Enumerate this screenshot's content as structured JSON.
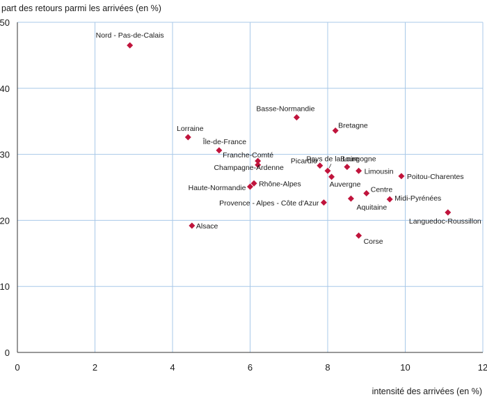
{
  "chart_data": {
    "type": "scatter",
    "title": "",
    "xlabel": "intensité des arrivées (en %)",
    "ylabel": "part des retours parmi les arrivées (en %)",
    "xlim": [
      0,
      12
    ],
    "ylim": [
      0,
      50
    ],
    "xticks": [
      "0",
      "2",
      "4",
      "6",
      "8",
      "10",
      "12"
    ],
    "yticks": [
      "0",
      "10",
      "20",
      "30",
      "40",
      "50"
    ],
    "grid": true,
    "marker_color": "#c0143c",
    "grid_color": "#a8c8e8",
    "points": [
      {
        "label": "Nord - Pas-de-Calais",
        "x": 2.9,
        "y": 46.5
      },
      {
        "label": "Lorraine",
        "x": 4.4,
        "y": 32.6
      },
      {
        "label": "Île-de-France",
        "x": 5.2,
        "y": 30.6
      },
      {
        "label": "Basse-Normandie",
        "x": 7.2,
        "y": 35.6
      },
      {
        "label": "Bretagne",
        "x": 8.2,
        "y": 33.6
      },
      {
        "label": "Franche-Comté",
        "x": 6.2,
        "y": 29.0
      },
      {
        "label": "Champagne-Ardenne",
        "x": 6.2,
        "y": 28.4
      },
      {
        "label": "Pays de la Loire",
        "x": 8.0,
        "y": 27.5
      },
      {
        "label": "Picardie",
        "x": 7.8,
        "y": 28.3
      },
      {
        "label": "Bourgogne",
        "x": 8.5,
        "y": 28.1
      },
      {
        "label": "Limousin",
        "x": 8.8,
        "y": 27.5
      },
      {
        "label": "Auvergne",
        "x": 8.1,
        "y": 26.6
      },
      {
        "label": "Poitou-Charentes",
        "x": 9.9,
        "y": 26.7
      },
      {
        "label": "Haute-Normandie",
        "x": 6.0,
        "y": 25.1
      },
      {
        "label": "Rhône-Alpes",
        "x": 6.1,
        "y": 25.6
      },
      {
        "label": "Centre",
        "x": 9.0,
        "y": 24.1
      },
      {
        "label": "Midi-Pyrénées",
        "x": 9.6,
        "y": 23.2
      },
      {
        "label": "Aquitaine",
        "x": 8.6,
        "y": 23.3
      },
      {
        "label": "Provence - Alpes - Côte d'Azur",
        "x": 7.9,
        "y": 22.7
      },
      {
        "label": "Languedoc-Roussillon",
        "x": 11.1,
        "y": 21.2
      },
      {
        "label": "Alsace",
        "x": 4.5,
        "y": 19.2
      },
      {
        "label": "Corse",
        "x": 8.8,
        "y": 17.7
      }
    ]
  }
}
